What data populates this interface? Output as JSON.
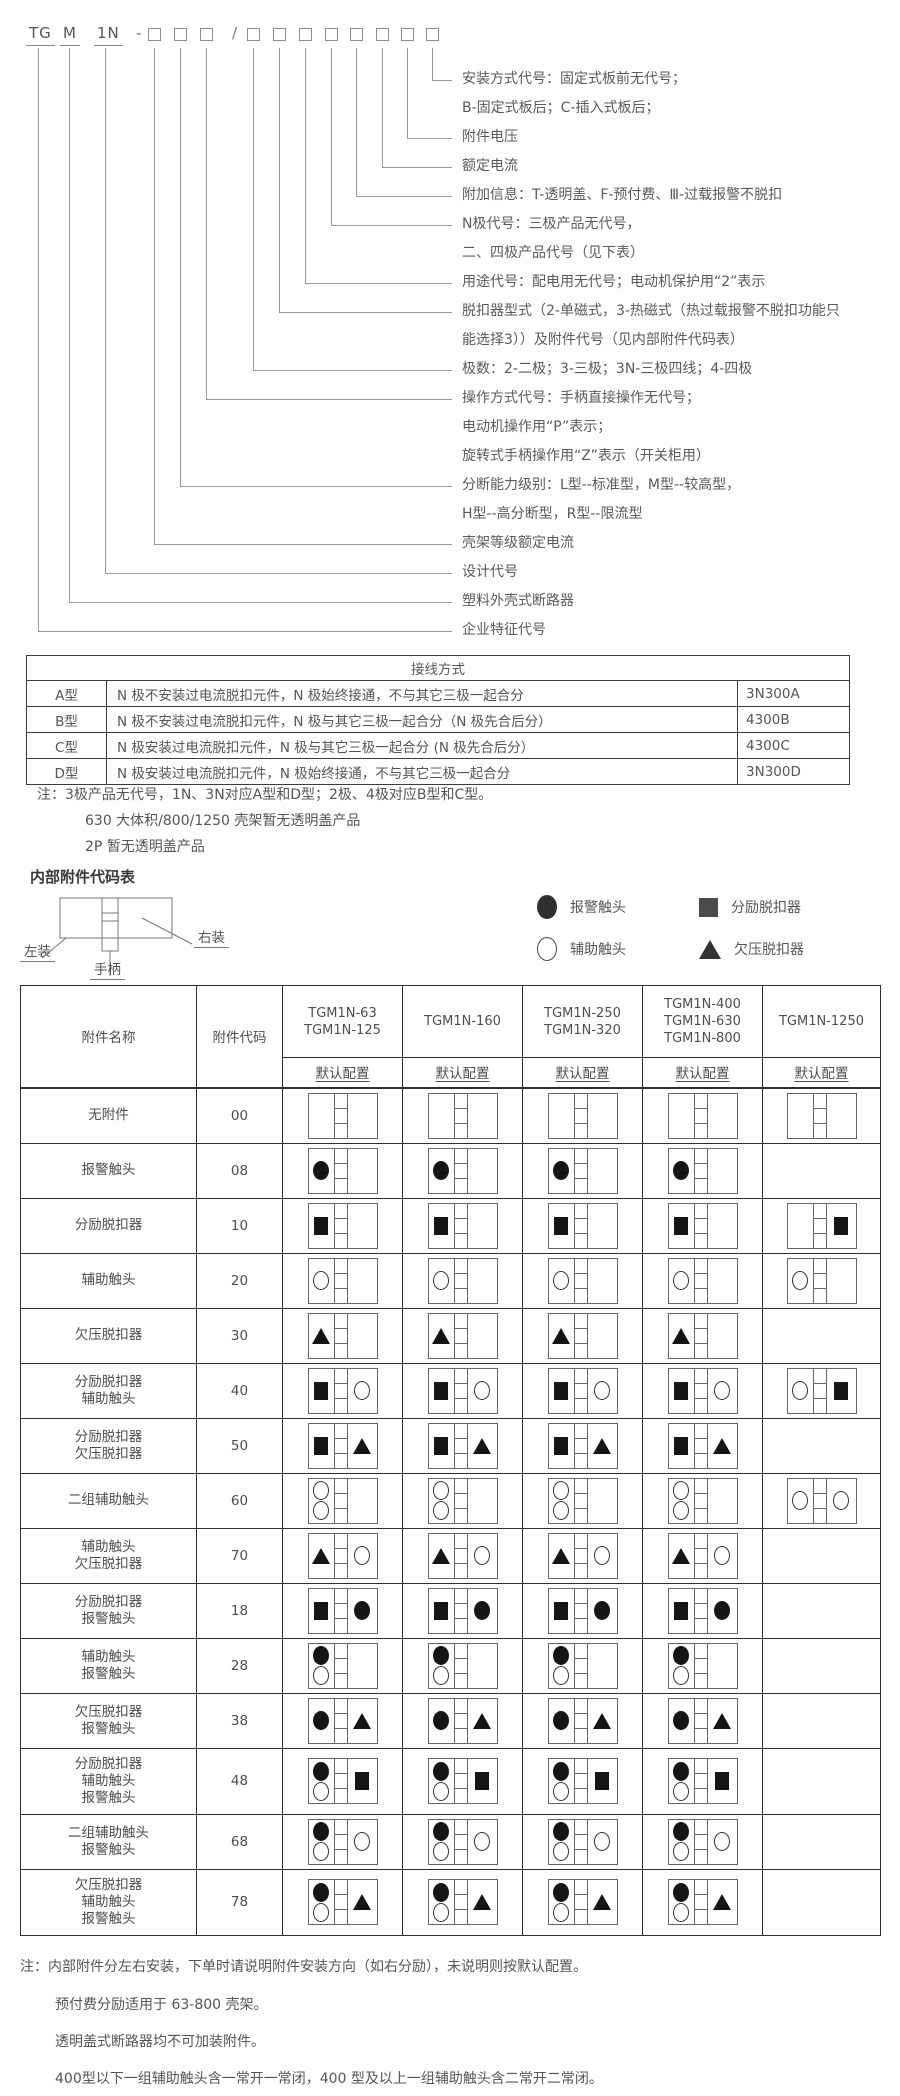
{
  "colors": {
    "page_bg": "#ffffff",
    "text": "#595959",
    "table_border": "#2f2f2f",
    "diagram_line": "#999999",
    "symbol_black": "#151515"
  },
  "model_code": {
    "prefix_parts": [
      "TG",
      "M",
      "1N"
    ],
    "separator_dash": "-",
    "separator_slash": "/",
    "boxes_before_slash": 3,
    "boxes_after_slash": 8,
    "labels": [
      {
        "lines": [
          "安装方式代号：固定式板前无代号；",
          "B-固定式板后；C-插入式板后；"
        ]
      },
      {
        "lines": [
          "附件电压"
        ]
      },
      {
        "lines": [
          "额定电流"
        ]
      },
      {
        "lines": [
          "附加信息：T-透明盖、F-预付费、Ⅲ-过载报警不脱扣"
        ]
      },
      {
        "lines": [
          "N极代号：三极产品无代号，",
          "二、四极产品代号（见下表）"
        ]
      },
      {
        "lines": [
          "用途代号：配电用无代号；电动机保护用“2”表示"
        ]
      },
      {
        "lines": [
          "脱扣器型式（2-单磁式，3-热磁式（热过载报警不脱扣功能只",
          "能选择3））及附件代号（见内部附件代码表）"
        ]
      },
      {
        "lines": [
          "极数：2-二极；3-三极；3N-三极四线；4-四极"
        ]
      },
      {
        "lines": [
          "操作方式代号：手柄直接操作无代号；",
          "电动机操作用“P”表示；",
          "旋转式手柄操作用“Z”表示（开关柜用）"
        ]
      },
      {
        "lines": [
          "分断能力级别：L型--标准型，M型--较高型，",
          "H型--高分断型，R型--限流型"
        ]
      },
      {
        "lines": [
          "壳架等级额定电流"
        ]
      },
      {
        "lines": [
          "设计代号"
        ]
      },
      {
        "lines": [
          "塑料外壳式断路器"
        ]
      },
      {
        "lines": [
          "企业特征代号"
        ]
      }
    ]
  },
  "wiring_table": {
    "title": "接线方式",
    "rows": [
      {
        "type": "A型",
        "desc": "N 极不安装过电流脱扣元件，N 极始终接通，不与其它三极一起合分",
        "code": "3N300A"
      },
      {
        "type": "B型",
        "desc": "N 极不安装过电流脱扣元件，N 极与其它三极一起合分（N 极先合后分）",
        "code": "4300B"
      },
      {
        "type": "C型",
        "desc": "N 极安装过电流脱扣元件，N 极与其它三极一起合分 (N 极先合后分）",
        "code": "4300C"
      },
      {
        "type": "D型",
        "desc": "N 极安装过电流脱扣元件，N 极始终接通，不与其它三极一起合分",
        "code": "3N300D"
      }
    ]
  },
  "wiring_notes": [
    "注：3极产品无代号，1N、3N对应A型和D型；2极、4极对应B型和C型。",
    "630 大体积/800/1250 壳架暂无透明盖产品",
    "2P 暂无透明盖产品"
  ],
  "accessory_section": {
    "title": "内部附件代码表",
    "breaker_diagram": {
      "left_label": "左装",
      "handle_label": "手柄",
      "right_label": "右装"
    },
    "legend": [
      {
        "symbol": "alarm-contact",
        "shape": "filled-circle",
        "label": "报警触头"
      },
      {
        "symbol": "shunt-release",
        "shape": "filled-square",
        "label": "分励脱扣器"
      },
      {
        "symbol": "auxiliary-contact",
        "shape": "open-circle",
        "label": "辅助触头"
      },
      {
        "symbol": "undervoltage-release",
        "shape": "filled-triangle",
        "label": "欠压脱扣器"
      }
    ],
    "table": {
      "col1_header": "附件名称",
      "col2_header": "附件代码",
      "model_columns": [
        [
          "TGM1N-63",
          "TGM1N-125"
        ],
        [
          "TGM1N-160"
        ],
        [
          "TGM1N-250",
          "TGM1N-320"
        ],
        [
          "TGM1N-400",
          "TGM1N-630",
          "TGM1N-800"
        ],
        [
          "TGM1N-1250"
        ]
      ],
      "subheader": "默认配置",
      "shape_codes": {
        "C": "filled-circle alarm-contact",
        "O": "open-circle auxiliary-contact",
        "S": "filled-square shunt-release",
        "T": "filled-triangle undervoltage-release"
      },
      "rows": [
        {
          "name": [
            "无附件"
          ],
          "code": "00",
          "std": {
            "left": [],
            "right": []
          },
          "last": {
            "left": [],
            "right": []
          }
        },
        {
          "name": [
            "报警触头"
          ],
          "code": "08",
          "std": {
            "left": [
              "C"
            ],
            "right": []
          },
          "last": null
        },
        {
          "name": [
            "分励脱扣器"
          ],
          "code": "10",
          "std": {
            "left": [
              "S"
            ],
            "right": []
          },
          "last": {
            "left": [],
            "right": [
              "S"
            ]
          }
        },
        {
          "name": [
            "辅助触头"
          ],
          "code": "20",
          "std": {
            "left": [
              "O"
            ],
            "right": []
          },
          "last": {
            "left": [
              "O"
            ],
            "right": []
          }
        },
        {
          "name": [
            "欠压脱扣器"
          ],
          "code": "30",
          "std": {
            "left": [
              "T"
            ],
            "right": []
          },
          "last": null
        },
        {
          "name": [
            "分励脱扣器",
            "辅助触头"
          ],
          "code": "40",
          "std": {
            "left": [
              "S"
            ],
            "right": [
              "O"
            ]
          },
          "last": {
            "left": [
              "O"
            ],
            "right": [
              "S"
            ]
          }
        },
        {
          "name": [
            "分励脱扣器",
            "欠压脱扣器"
          ],
          "code": "50",
          "std": {
            "left": [
              "S"
            ],
            "right": [
              "T"
            ]
          },
          "last": null
        },
        {
          "name": [
            "二组辅助触头"
          ],
          "code": "60",
          "std": {
            "left": [
              "O",
              "O"
            ],
            "right": []
          },
          "last": {
            "left": [
              "O"
            ],
            "right": [
              "O"
            ]
          }
        },
        {
          "name": [
            "辅助触头",
            "欠压脱扣器"
          ],
          "code": "70",
          "std": {
            "left": [
              "T"
            ],
            "right": [
              "O"
            ]
          },
          "last": null
        },
        {
          "name": [
            "分励脱扣器",
            "报警触头"
          ],
          "code": "18",
          "std": {
            "left": [
              "S"
            ],
            "right": [
              "C"
            ]
          },
          "last": null
        },
        {
          "name": [
            "辅助触头",
            "报警触头"
          ],
          "code": "28",
          "std": {
            "left": [
              "C",
              "O"
            ],
            "right": []
          },
          "last": null
        },
        {
          "name": [
            "欠压脱扣器",
            "报警触头"
          ],
          "code": "38",
          "std": {
            "left": [
              "C"
            ],
            "right": [
              "T"
            ]
          },
          "last": null
        },
        {
          "name": [
            "分励脱扣器",
            "辅助触头",
            "报警触头"
          ],
          "code": "48",
          "std": {
            "left": [
              "C",
              "O"
            ],
            "right": [
              "S"
            ]
          },
          "last": null
        },
        {
          "name": [
            "二组辅助触头",
            "报警触头"
          ],
          "code": "68",
          "std": {
            "left": [
              "C",
              "O"
            ],
            "right": [
              "O"
            ]
          },
          "last": null
        },
        {
          "name": [
            "欠压脱扣器",
            "辅助触头",
            "报警触头"
          ],
          "code": "78",
          "std": {
            "left": [
              "C",
              "O"
            ],
            "right": [
              "T"
            ]
          },
          "last": null
        }
      ]
    }
  },
  "bottom_notes": [
    "注：内部附件分左右安装，下单时请说明附件安装方向（如右分励），未说明则按默认配置。",
    "预付费分励适用于 63-800 壳架。",
    "透明盖式断路器均不可加装附件。",
    "400型以下一组辅助触头含一常开一常闭，400 型及以上一组辅助触头含二常开二常闭。"
  ]
}
